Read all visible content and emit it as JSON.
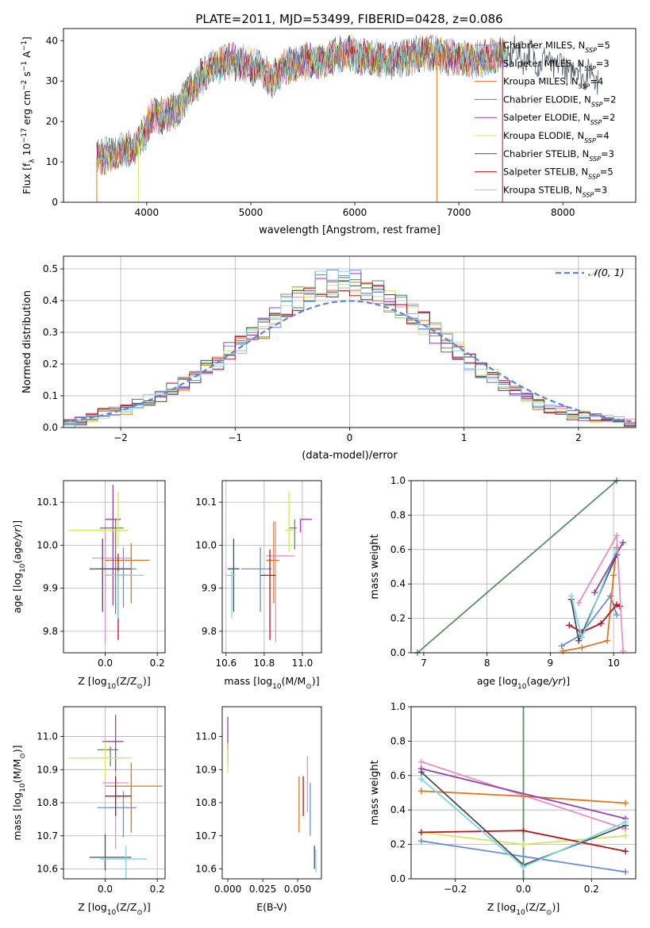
{
  "figure": {
    "title": "PLATE=2011, MJD=53499, FIBERID=0428, z=0.086"
  },
  "chart_data": [
    {
      "id": "spectrum",
      "type": "line",
      "title": "PLATE=2011, MJD=53499, FIBERID=0428, z=0.086",
      "xlabel": "wavelength [Angstrom, rest frame]",
      "ylabel": "Flux [f_λ 10^-17 erg cm^-2 s^-1 A^-1]",
      "xlim": [
        3200,
        8700
      ],
      "ylim": [
        0,
        43
      ],
      "xticks": [
        4000,
        5000,
        6000,
        7000,
        8000
      ],
      "yticks": [
        0,
        10,
        20,
        30,
        40
      ],
      "grid": false,
      "legend_position": "right",
      "data_range": {
        "x_start": 3520,
        "x_end": 8340
      },
      "spectrum_envelope": {
        "x": [
          3520,
          3700,
          3900,
          3950,
          4050,
          4200,
          4300,
          4400,
          4500,
          4600,
          4800,
          5000,
          5100,
          5200,
          5300,
          5500,
          5700,
          5900,
          6100,
          6300,
          6500,
          6700,
          6900,
          7100,
          7300,
          7500,
          7700,
          7900,
          8100,
          8340
        ],
        "y": [
          11,
          12,
          14,
          16,
          21,
          22,
          23,
          27,
          30,
          33,
          35,
          34,
          33,
          30,
          33,
          35,
          35,
          37,
          36,
          35,
          36,
          37,
          36,
          35,
          36,
          37,
          36,
          34,
          33,
          31
        ]
      },
      "dropouts": [
        {
          "x": 3520,
          "series": "Kroupa MILES"
        },
        {
          "x": 3920,
          "series": "Kroupa ELODIE"
        },
        {
          "x": 6790,
          "series": "Kroupa MILES"
        },
        {
          "x": 7420,
          "series": "Salpeter STELIB"
        }
      ],
      "series": [
        {
          "name": "Chabrier MILES, N_SSP=5",
          "label_main": "Chabrier MILES, N",
          "label_sub": "SSP",
          "label_end": "=5",
          "color": "#6b8fd6"
        },
        {
          "name": "Salpeter MILES, N_SSP=3",
          "label_main": "Salpeter MILES, N",
          "label_sub": "SSP",
          "label_end": "=3",
          "color": "#e88fc4"
        },
        {
          "name": "Kroupa MILES, N_SSP=4",
          "label_main": "Kroupa MILES, N",
          "label_sub": "SSP",
          "label_end": "=4",
          "color": "#e0761f"
        },
        {
          "name": "Chabrier ELODIE, N_SSP=2",
          "label_main": "Chabrier ELODIE, N",
          "label_sub": "SSP",
          "label_end": "=2",
          "color": "#5b8f63"
        },
        {
          "name": "Salpeter ELODIE, N_SSP=2",
          "label_main": "Salpeter ELODIE, N",
          "label_sub": "SSP",
          "label_end": "=2",
          "color": "#9b3fb0"
        },
        {
          "name": "Kroupa ELODIE, N_SSP=4",
          "label_main": "Kroupa ELODIE, N",
          "label_sub": "SSP",
          "label_end": "=4",
          "color": "#d4e85a"
        },
        {
          "name": "Chabrier STELIB, N_SSP=3",
          "label_main": "Chabrier STELIB, N",
          "label_sub": "SSP",
          "label_end": "=3",
          "color": "#454f57"
        },
        {
          "name": "Salpeter STELIB, N_SSP=5",
          "label_main": "Salpeter STELIB, N",
          "label_sub": "SSP",
          "label_end": "=5",
          "color": "#b3161c"
        },
        {
          "name": "Kroupa STELIB, N_SSP=3",
          "label_main": "Kroupa STELIB, N",
          "label_sub": "SSP",
          "label_end": "=3",
          "color": "#7fd6df"
        }
      ]
    },
    {
      "id": "residuals",
      "type": "histogram",
      "xlabel": "(data-model)/error",
      "ylabel": "Normed distribution",
      "xlim": [
        -2.5,
        2.5
      ],
      "ylim": [
        0,
        0.54
      ],
      "xticks": [
        -2,
        -1,
        0,
        1,
        2
      ],
      "yticks": [
        0.0,
        0.1,
        0.2,
        0.3,
        0.4,
        0.5
      ],
      "grid": true,
      "legend_position": "top-right",
      "reference_curve": {
        "name": "𝒩(0, 1)",
        "color": "#5b86d6",
        "style": "dashed"
      },
      "bins": {
        "start": -2.5,
        "width": 0.1
      },
      "hist_base": [
        0.015,
        0.02,
        0.03,
        0.045,
        0.05,
        0.055,
        0.07,
        0.085,
        0.1,
        0.12,
        0.14,
        0.165,
        0.19,
        0.21,
        0.24,
        0.26,
        0.29,
        0.31,
        0.34,
        0.38,
        0.41,
        0.44,
        0.45,
        0.455,
        0.46,
        0.46,
        0.44,
        0.42,
        0.4,
        0.38,
        0.36,
        0.33,
        0.3,
        0.27,
        0.24,
        0.21,
        0.18,
        0.16,
        0.13,
        0.11,
        0.09,
        0.075,
        0.06,
        0.05,
        0.04,
        0.035,
        0.03,
        0.025,
        0.02,
        0.015
      ]
    },
    {
      "id": "age_vs_Z",
      "type": "errorbar",
      "xlabel": "Z [log10(Z/Z☉)]",
      "ylabel": "age  [log10(age/yr)]",
      "xlim": [
        -0.16,
        0.23
      ],
      "ylim": [
        9.75,
        10.15
      ],
      "xticks": [
        0.0,
        0.2
      ],
      "yticks": [
        9.8,
        9.9,
        10.0,
        10.1
      ],
      "grid": true,
      "points": [
        {
          "series": 0,
          "x": 0.07,
          "y": 9.945,
          "xerr": [
            0.1,
            0.05
          ],
          "yerr": [
            0.09,
            0.05
          ]
        },
        {
          "series": 1,
          "x": 0.0,
          "y": 9.97,
          "xerr": [
            0.05,
            0.1
          ],
          "yerr": [
            0.2,
            0.08
          ]
        },
        {
          "series": 2,
          "x": 0.1,
          "y": 9.965,
          "xerr": [
            0.1,
            0.07
          ],
          "yerr": [
            0.1,
            0.04
          ]
        },
        {
          "series": 3,
          "x": 0.04,
          "y": 10.04,
          "xerr": [
            0.06,
            0.03
          ],
          "yerr": [
            0.2,
            0.02
          ]
        },
        {
          "series": 4,
          "x": 0.03,
          "y": 10.06,
          "xerr": [
            0.03,
            0.03
          ],
          "yerr": [
            0.2,
            0.08
          ]
        },
        {
          "series": 5,
          "x": 0.05,
          "y": 10.035,
          "xerr": [
            0.19,
            0.04
          ],
          "yerr": [
            0.04,
            0.09
          ]
        },
        {
          "series": 6,
          "x": -0.01,
          "y": 9.945,
          "xerr": [
            0.05,
            0.11
          ],
          "yerr": [
            0.1,
            0.07
          ]
        },
        {
          "series": 7,
          "x": 0.05,
          "y": 9.93,
          "xerr": [
            0.05,
            0.05
          ],
          "yerr": [
            0.15,
            0.05
          ]
        },
        {
          "series": 8,
          "x": 0.05,
          "y": 9.93,
          "xerr": [
            0.05,
            0.1
          ],
          "yerr": [
            0.1,
            0.01
          ]
        }
      ]
    },
    {
      "id": "age_vs_mass",
      "type": "errorbar",
      "xlabel": "mass [log10(M/M☉)]",
      "ylabel": "",
      "xlim": [
        10.58,
        11.1
      ],
      "ylim": [
        9.75,
        10.15
      ],
      "xticks": [
        10.6,
        10.8,
        11.0
      ],
      "yticks": [
        9.8,
        9.9,
        10.0,
        10.1
      ],
      "grid": true,
      "points": [
        {
          "series": 0,
          "x": 10.78,
          "y": 9.945,
          "xerr": [
            0.1,
            0.06
          ],
          "yerr": [
            0.1,
            0.05
          ]
        },
        {
          "series": 1,
          "x": 10.86,
          "y": 9.975,
          "xerr": [
            0.05,
            0.1
          ],
          "yerr": [
            0.2,
            0.08
          ]
        },
        {
          "series": 2,
          "x": 10.85,
          "y": 9.965,
          "xerr": [
            0.04,
            0.03
          ],
          "yerr": [
            0.1,
            0.09
          ]
        },
        {
          "series": 3,
          "x": 10.96,
          "y": 10.04,
          "xerr": [
            0.03,
            0.01
          ],
          "yerr": [
            0.05,
            0.02
          ]
        },
        {
          "series": 4,
          "x": 10.99,
          "y": 10.06,
          "xerr": [
            0.0,
            0.06
          ],
          "yerr": [
            0.03,
            0.0
          ]
        },
        {
          "series": 5,
          "x": 10.93,
          "y": 10.035,
          "xerr": [
            0.02,
            0.02
          ],
          "yerr": [
            0.05,
            0.09
          ]
        },
        {
          "series": 6,
          "x": 10.64,
          "y": 9.945,
          "xerr": [
            0.03,
            0.03
          ],
          "yerr": [
            0.1,
            0.07
          ]
        },
        {
          "series": 7,
          "x": 10.83,
          "y": 9.93,
          "xerr": [
            0.05,
            0.03
          ],
          "yerr": [
            0.15,
            0.06
          ]
        },
        {
          "series": 8,
          "x": 10.63,
          "y": 9.93,
          "xerr": [
            0.03,
            0.02
          ],
          "yerr": [
            0.1,
            0.01
          ]
        }
      ]
    },
    {
      "id": "weight_vs_age",
      "type": "line",
      "xlabel": "age  [log10(age/yr)]",
      "ylabel": "mass weight",
      "xlim": [
        6.8,
        10.35
      ],
      "ylim": [
        0,
        1
      ],
      "xticks": [
        7,
        8,
        9,
        10
      ],
      "yticks": [
        0.0,
        0.2,
        0.4,
        0.6,
        0.8,
        1.0
      ],
      "grid": true,
      "lines": [
        {
          "series": 3,
          "x": [
            6.9,
            10.05
          ],
          "y": [
            0.0,
            1.0
          ]
        },
        {
          "series": 0,
          "x": [
            9.18,
            9.47,
            9.95,
            10.05
          ],
          "y": [
            0.04,
            0.1,
            0.33,
            0.22
          ]
        },
        {
          "series": 2,
          "x": [
            9.2,
            9.5,
            9.9,
            10.0,
            10.05
          ],
          "y": [
            0.01,
            0.03,
            0.07,
            0.45,
            0.61
          ]
        },
        {
          "series": 7,
          "x": [
            9.3,
            9.5,
            9.8,
            10.05,
            10.1
          ],
          "y": [
            0.16,
            0.12,
            0.17,
            0.28,
            0.27
          ]
        },
        {
          "series": 6,
          "x": [
            9.33,
            9.45,
            10.05
          ],
          "y": [
            0.31,
            0.07,
            0.57
          ]
        },
        {
          "series": 8,
          "x": [
            9.33,
            9.5,
            10.05
          ],
          "y": [
            0.33,
            0.09,
            0.6
          ]
        },
        {
          "series": 4,
          "x": [
            9.7,
            10.15
          ],
          "y": [
            0.35,
            0.64
          ]
        },
        {
          "series": 1,
          "x": [
            9.45,
            10.05,
            10.15
          ],
          "y": [
            0.29,
            0.68,
            0.01
          ]
        }
      ]
    },
    {
      "id": "mass_vs_Z",
      "type": "errorbar",
      "xlabel": "Z [log10(Z/Z☉)]",
      "ylabel": "mass [log10(M/M☉)]",
      "xlim": [
        -0.16,
        0.23
      ],
      "ylim": [
        10.57,
        11.09
      ],
      "xticks": [
        0.0,
        0.2
      ],
      "yticks": [
        10.6,
        10.7,
        10.8,
        10.9,
        11.0
      ],
      "grid": true,
      "points": [
        {
          "series": 0,
          "x": 0.07,
          "y": 10.785,
          "xerr": [
            0.1,
            0.05
          ],
          "yerr": [
            0.09,
            0.05
          ]
        },
        {
          "series": 1,
          "x": 0.04,
          "y": 10.86,
          "xerr": [
            0.05,
            0.05
          ],
          "yerr": [
            0.2,
            0.08
          ]
        },
        {
          "series": 2,
          "x": 0.1,
          "y": 10.85,
          "xerr": [
            0.1,
            0.12
          ],
          "yerr": [
            0.14,
            0.07
          ]
        },
        {
          "series": 3,
          "x": 0.02,
          "y": 10.96,
          "xerr": [
            0.05,
            0.03
          ],
          "yerr": [
            0.05,
            0.01
          ]
        },
        {
          "series": 4,
          "x": 0.04,
          "y": 10.985,
          "xerr": [
            0.05,
            0.03
          ],
          "yerr": [
            0.09,
            0.08
          ]
        },
        {
          "series": 5,
          "x": 0.0,
          "y": 10.935,
          "xerr": [
            0.14,
            0.1
          ],
          "yerr": [
            0.06,
            0.05
          ]
        },
        {
          "series": 6,
          "x": 0.0,
          "y": 10.635,
          "xerr": [
            0.06,
            0.1
          ],
          "yerr": [
            0.04,
            0.07
          ]
        },
        {
          "series": 7,
          "x": 0.04,
          "y": 10.82,
          "xerr": [
            0.04,
            0.06
          ],
          "yerr": [
            0.06,
            0.06
          ]
        },
        {
          "series": 8,
          "x": 0.08,
          "y": 10.63,
          "xerr": [
            0.1,
            0.08
          ],
          "yerr": [
            0.06,
            0.04
          ]
        }
      ]
    },
    {
      "id": "mass_vs_ebv",
      "type": "errorbar",
      "xlabel": "E(B-V)",
      "ylabel": "",
      "xlim": [
        -0.004,
        0.067
      ],
      "ylim": [
        10.57,
        11.09
      ],
      "xticks": [
        0.0,
        0.025,
        0.05
      ],
      "xtick_labels": [
        "0.000",
        "0.025",
        "0.050"
      ],
      "yticks": [
        10.6,
        10.7,
        10.8,
        10.9,
        11.0
      ],
      "grid": false,
      "points": [
        {
          "series": 0,
          "x": 0.059,
          "y": 10.78,
          "xerr": [
            0,
            0
          ],
          "yerr": [
            0.08,
            0.08
          ]
        },
        {
          "series": 1,
          "x": 0.057,
          "y": 10.87,
          "xerr": [
            0,
            0
          ],
          "yerr": [
            0.1,
            0.07
          ]
        },
        {
          "series": 2,
          "x": 0.051,
          "y": 10.8,
          "xerr": [
            0,
            0
          ],
          "yerr": [
            0.09,
            0.08
          ]
        },
        {
          "series": 3,
          "x": 0.0,
          "y": 10.96,
          "xerr": [
            0,
            0
          ],
          "yerr": [
            0.04,
            0.02
          ]
        },
        {
          "series": 4,
          "x": 0.0,
          "y": 11.0,
          "xerr": [
            0,
            0
          ],
          "yerr": [
            0.04,
            0.06
          ]
        },
        {
          "series": 5,
          "x": 0.0,
          "y": 10.93,
          "xerr": [
            0,
            0
          ],
          "yerr": [
            0.04,
            0.05
          ]
        },
        {
          "series": 6,
          "x": 0.062,
          "y": 10.63,
          "xerr": [
            0,
            0
          ],
          "yerr": [
            0.03,
            0.04
          ]
        },
        {
          "series": 7,
          "x": 0.054,
          "y": 10.82,
          "xerr": [
            0,
            0
          ],
          "yerr": [
            0.06,
            0.06
          ]
        },
        {
          "series": 8,
          "x": 0.063,
          "y": 10.62,
          "xerr": [
            0,
            0
          ],
          "yerr": [
            0.03,
            0.04
          ]
        }
      ]
    },
    {
      "id": "weight_vs_Z",
      "type": "line",
      "xlabel": "Z [log10(Z/Z☉)]",
      "ylabel": "mass weight",
      "xlim": [
        -0.33,
        0.33
      ],
      "ylim": [
        0,
        1
      ],
      "xticks": [
        -0.2,
        0.0,
        0.2
      ],
      "yticks": [
        0.0,
        0.2,
        0.4,
        0.6,
        0.8,
        1.0
      ],
      "grid": true,
      "vertical_line": {
        "series": 3,
        "x": 0.0
      },
      "lines": [
        {
          "series": 0,
          "x": [
            -0.3,
            0.0,
            0.3
          ],
          "y": [
            0.22,
            0.13,
            0.04
          ]
        },
        {
          "series": 1,
          "x": [
            -0.3,
            0.3
          ],
          "y": [
            0.68,
            0.29
          ]
        },
        {
          "series": 2,
          "x": [
            -0.3,
            0.0,
            0.3
          ],
          "y": [
            0.51,
            0.48,
            0.44
          ]
        },
        {
          "series": 4,
          "x": [
            -0.3,
            0.3
          ],
          "y": [
            0.64,
            0.35
          ]
        },
        {
          "series": 5,
          "x": [
            -0.3,
            0.0,
            0.3
          ],
          "y": [
            0.27,
            0.2,
            0.25
          ]
        },
        {
          "series": 6,
          "x": [
            -0.3,
            0.0,
            0.3
          ],
          "y": [
            0.62,
            0.08,
            0.31
          ]
        },
        {
          "series": 7,
          "x": [
            -0.3,
            0.0,
            0.3
          ],
          "y": [
            0.27,
            0.28,
            0.16
          ]
        },
        {
          "series": 8,
          "x": [
            -0.3,
            0.0,
            0.3
          ],
          "y": [
            0.58,
            0.07,
            0.33
          ]
        }
      ]
    }
  ]
}
